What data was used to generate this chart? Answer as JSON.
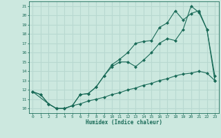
{
  "xlabel": "Humidex (Indice chaleur)",
  "bg_color": "#cce8df",
  "grid_color": "#b8d8d0",
  "line_color": "#1a6b58",
  "xlim": [
    -0.5,
    23.5
  ],
  "ylim": [
    9.5,
    21.5
  ],
  "xticks": [
    0,
    1,
    2,
    3,
    4,
    5,
    6,
    7,
    8,
    9,
    10,
    11,
    12,
    13,
    14,
    15,
    16,
    17,
    18,
    19,
    20,
    21,
    22,
    23
  ],
  "yticks": [
    10,
    11,
    12,
    13,
    14,
    15,
    16,
    17,
    18,
    19,
    20,
    21
  ],
  "line1_x": [
    0,
    1,
    2,
    3,
    4,
    5,
    6,
    7,
    8,
    9,
    10,
    11,
    12,
    13,
    14,
    15,
    16,
    17,
    18,
    19,
    20,
    21,
    22,
    23
  ],
  "line1_y": [
    11.8,
    11.5,
    10.5,
    10.0,
    10.0,
    10.3,
    11.5,
    11.6,
    12.3,
    13.5,
    14.5,
    15.0,
    15.0,
    14.5,
    15.2,
    16.0,
    17.0,
    17.5,
    17.3,
    18.5,
    21.0,
    20.3,
    18.5,
    13.5
  ],
  "line2_x": [
    0,
    1,
    2,
    3,
    4,
    5,
    6,
    7,
    8,
    9,
    10,
    11,
    12,
    13,
    14,
    15,
    16,
    17,
    18,
    19,
    20,
    21,
    22,
    23
  ],
  "line2_y": [
    11.8,
    11.5,
    10.5,
    10.0,
    10.0,
    10.3,
    11.5,
    11.6,
    12.3,
    13.5,
    14.7,
    15.3,
    16.0,
    17.0,
    17.2,
    17.3,
    18.7,
    19.2,
    20.5,
    19.5,
    20.2,
    20.5,
    18.5,
    13.0
  ],
  "line3_x": [
    0,
    2,
    3,
    4,
    5,
    6,
    7,
    8,
    9,
    10,
    11,
    12,
    13,
    14,
    15,
    16,
    17,
    18,
    19,
    20,
    21,
    22,
    23
  ],
  "line3_y": [
    11.8,
    10.5,
    10.0,
    10.0,
    10.3,
    10.5,
    10.8,
    11.0,
    11.2,
    11.5,
    11.7,
    12.0,
    12.2,
    12.5,
    12.7,
    13.0,
    13.2,
    13.5,
    13.7,
    13.8,
    14.0,
    13.8,
    13.0
  ]
}
